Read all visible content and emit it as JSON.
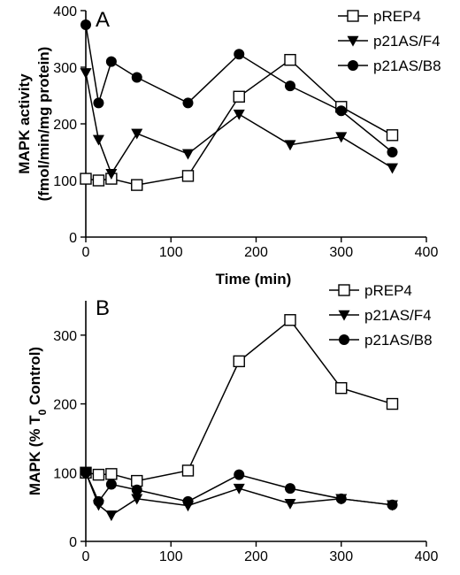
{
  "chart_data": [
    {
      "panel": "A",
      "type": "line",
      "xlabel": "Time (min)",
      "ylabel_lines": [
        "MAPK activity",
        "(fmol/min/mg protein)"
      ],
      "xlim": [
        0,
        400
      ],
      "ylim": [
        0,
        400
      ],
      "xticks": [
        0,
        100,
        200,
        300,
        400
      ],
      "yticks": [
        0,
        100,
        200,
        300,
        400
      ],
      "grid": false,
      "legend_position": "top-right",
      "series": [
        {
          "name": "pREP4",
          "marker": "open-square",
          "x": [
            0,
            15,
            30,
            60,
            120,
            180,
            240,
            300,
            360
          ],
          "y": [
            103,
            100,
            103,
            92,
            108,
            248,
            313,
            230,
            180
          ]
        },
        {
          "name": "p21AS/F4",
          "marker": "filled-triangle-down",
          "x": [
            0,
            15,
            30,
            60,
            120,
            180,
            240,
            300,
            360
          ],
          "y": [
            290,
            172,
            112,
            183,
            147,
            217,
            163,
            177,
            122
          ]
        },
        {
          "name": "p21AS/B8",
          "marker": "filled-circle",
          "x": [
            0,
            15,
            30,
            60,
            120,
            180,
            240,
            300,
            360
          ],
          "y": [
            375,
            237,
            310,
            282,
            237,
            323,
            267,
            223,
            150
          ]
        }
      ]
    },
    {
      "panel": "B",
      "type": "line",
      "xlabel": "Time (min)",
      "ylabel": "MAPK (% T",
      "ylabel_sub": "0",
      "ylabel_end": " Control)",
      "xlim": [
        0,
        400
      ],
      "ylim": [
        0,
        350
      ],
      "xticks": [
        0,
        100,
        200,
        300,
        400
      ],
      "yticks": [
        0,
        100,
        200,
        300
      ],
      "grid": false,
      "legend_position": "top-right",
      "series": [
        {
          "name": "pREP4",
          "marker": "open-square",
          "x": [
            0,
            15,
            30,
            60,
            120,
            180,
            240,
            300,
            360
          ],
          "y": [
            100,
            97,
            98,
            88,
            103,
            262,
            322,
            223,
            200
          ]
        },
        {
          "name": "p21AS/F4",
          "marker": "filled-triangle-down",
          "x": [
            0,
            15,
            30,
            60,
            120,
            180,
            240,
            300,
            360
          ],
          "y": [
            100,
            53,
            38,
            62,
            52,
            77,
            55,
            62,
            53
          ]
        },
        {
          "name": "p21AS/B8",
          "marker": "filled-circle",
          "x": [
            0,
            15,
            30,
            60,
            120,
            180,
            240,
            300,
            360
          ],
          "y": [
            100,
            58,
            83,
            75,
            58,
            97,
            77,
            62,
            53
          ]
        }
      ]
    }
  ]
}
